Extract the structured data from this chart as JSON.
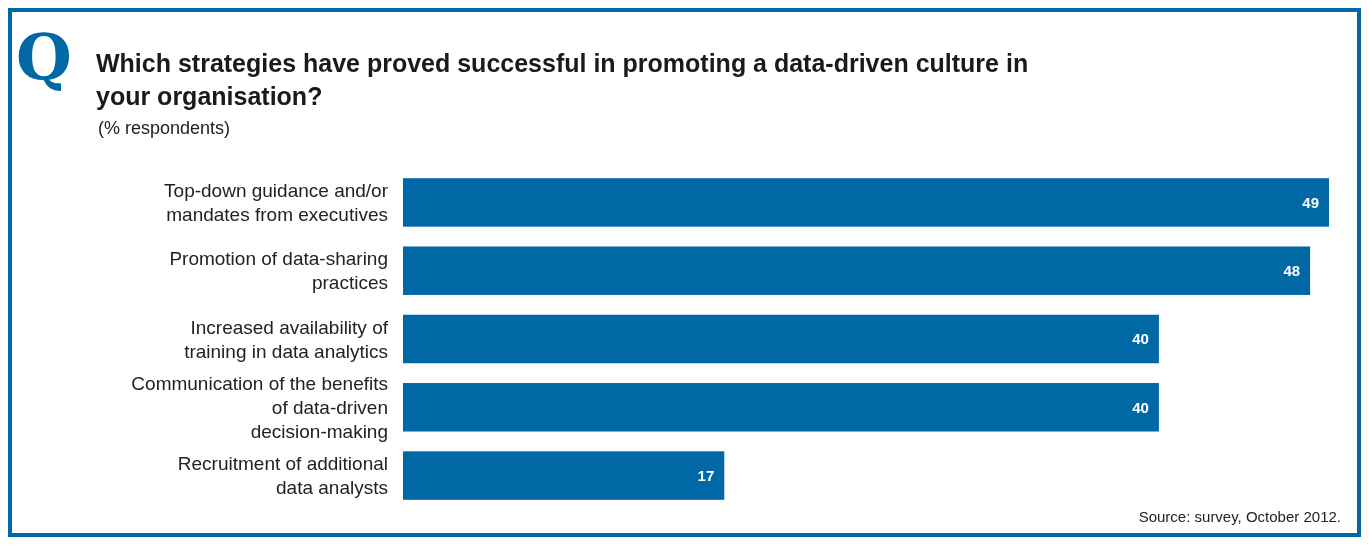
{
  "chart_data": {
    "type": "bar",
    "orientation": "horizontal",
    "title": "Which strategies have proved successful in promoting a data-driven culture in your organisation?",
    "subtitle": "(% respondents)",
    "categories": [
      "Top-down guidance and/or mandates from executives",
      "Promotion of data-sharing practices",
      "Increased availability of training in data analytics",
      "Communication of the benefits of data-driven decision-making",
      "Recruitment of additional data analysts"
    ],
    "values": [
      49,
      48,
      40,
      40,
      17
    ],
    "color": "#0068a5",
    "data_labels": true,
    "annotations": [
      "Q",
      "Source: survey, October 2012."
    ]
  }
}
